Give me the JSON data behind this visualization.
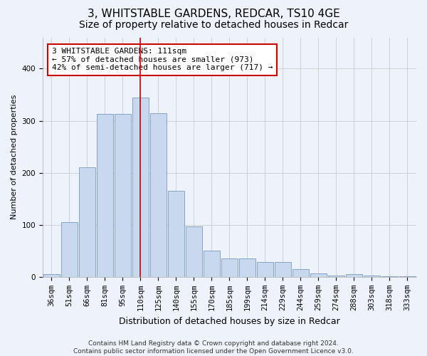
{
  "title": "3, WHITSTABLE GARDENS, REDCAR, TS10 4GE",
  "subtitle": "Size of property relative to detached houses in Redcar",
  "xlabel": "Distribution of detached houses by size in Redcar",
  "ylabel": "Number of detached properties",
  "categories": [
    "36sqm",
    "51sqm",
    "66sqm",
    "81sqm",
    "95sqm",
    "110sqm",
    "125sqm",
    "140sqm",
    "155sqm",
    "170sqm",
    "185sqm",
    "199sqm",
    "214sqm",
    "229sqm",
    "244sqm",
    "259sqm",
    "274sqm",
    "288sqm",
    "303sqm",
    "318sqm",
    "333sqm"
  ],
  "values": [
    6,
    105,
    210,
    313,
    313,
    345,
    315,
    165,
    97,
    50,
    35,
    35,
    29,
    29,
    15,
    7,
    2,
    5,
    2,
    1,
    1
  ],
  "bar_color": "#c8d8ee",
  "bar_edge_color": "#7799bb",
  "property_bin_index": 5,
  "vline_color": "#cc0000",
  "annotation_line1": "3 WHITSTABLE GARDENS: 111sqm",
  "annotation_line2": "← 57% of detached houses are smaller (973)",
  "annotation_line3": "42% of semi-detached houses are larger (717) →",
  "annotation_box_color": "#ffffff",
  "annotation_box_edge": "#cc0000",
  "grid_color": "#cccccc",
  "background_color": "#eef2fb",
  "ylim": [
    0,
    460
  ],
  "footer": "Contains HM Land Registry data © Crown copyright and database right 2024.\nContains public sector information licensed under the Open Government Licence v3.0.",
  "title_fontsize": 11,
  "subtitle_fontsize": 10,
  "xlabel_fontsize": 9,
  "ylabel_fontsize": 8,
  "tick_fontsize": 7.5,
  "footer_fontsize": 6.5,
  "ann_fontsize": 8
}
